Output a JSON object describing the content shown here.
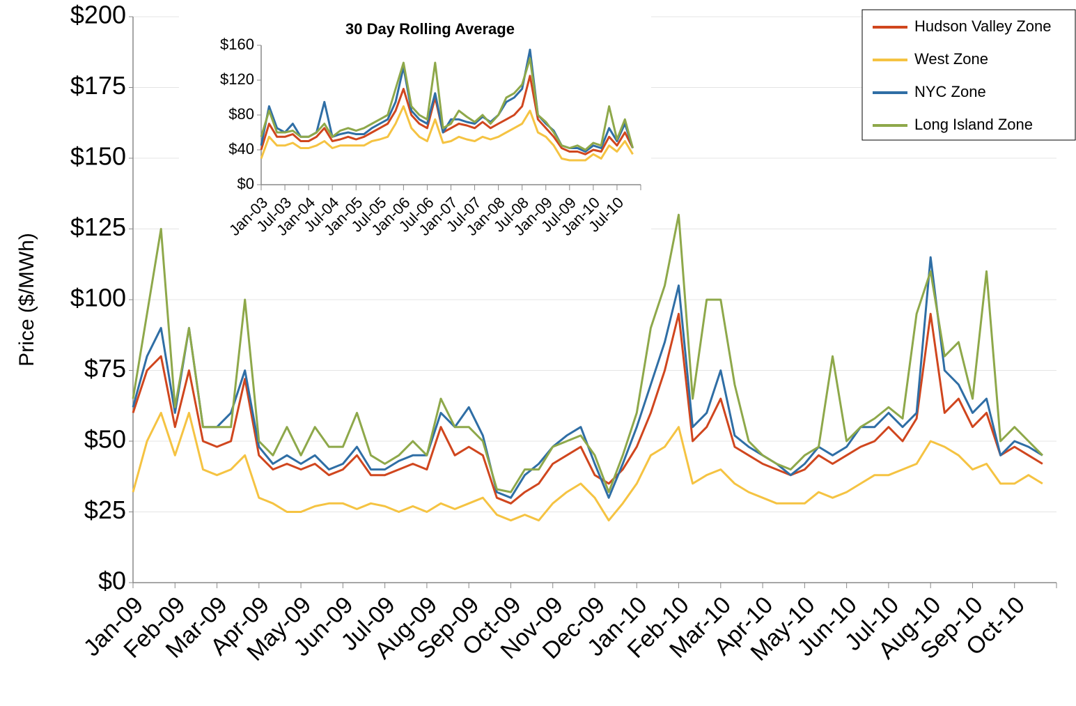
{
  "chart_data": [
    {
      "type": "line",
      "y_label": "Price ($/MWh)",
      "legend": "top-right",
      "grid": true,
      "categories": [
        "Jan-09",
        null,
        null,
        "Feb-09",
        null,
        null,
        "Mar-09",
        null,
        null,
        "Apr-09",
        null,
        null,
        "May-09",
        null,
        null,
        "Jun-09",
        null,
        null,
        "Jul-09",
        null,
        null,
        "Aug-09",
        null,
        null,
        "Sep-09",
        null,
        null,
        "Oct-09",
        null,
        null,
        "Nov-09",
        null,
        null,
        "Dec-09",
        null,
        null,
        "Jan-10",
        null,
        null,
        "Feb-10",
        null,
        null,
        "Mar-10",
        null,
        null,
        "Apr-10",
        null,
        null,
        "May-10",
        null,
        null,
        "Jun-10",
        null,
        null,
        "Jul-10",
        null,
        null,
        "Aug-10",
        null,
        null,
        "Sep-10",
        null,
        null,
        "Oct-10",
        null,
        null
      ],
      "ylim": [
        0,
        200
      ],
      "yticks": [
        {
          "value": 0,
          "label": "$0"
        },
        {
          "value": 25,
          "label": "$25"
        },
        {
          "value": 50,
          "label": "$50"
        },
        {
          "value": 75,
          "label": "$75"
        },
        {
          "value": 100,
          "label": "$100"
        },
        {
          "value": 125,
          "label": "$125"
        },
        {
          "value": 150,
          "label": "$150"
        },
        {
          "value": 175,
          "label": "$175"
        },
        {
          "value": 200,
          "label": "$200"
        }
      ],
      "series": [
        {
          "name": "Hudson Valley Zone",
          "color": "#d0461e",
          "values": [
            60,
            75,
            80,
            55,
            75,
            50,
            48,
            50,
            72,
            45,
            40,
            42,
            40,
            42,
            38,
            40,
            45,
            38,
            38,
            40,
            42,
            40,
            55,
            45,
            48,
            45,
            30,
            28,
            32,
            35,
            42,
            45,
            48,
            38,
            35,
            40,
            48,
            60,
            75,
            95,
            50,
            55,
            65,
            48,
            45,
            42,
            40,
            38,
            40,
            45,
            42,
            45,
            48,
            50,
            55,
            50,
            58,
            95,
            60,
            65,
            55,
            60,
            45,
            48,
            45,
            42
          ]
        },
        {
          "name": "West Zone",
          "color": "#f5c342",
          "values": [
            32,
            50,
            60,
            45,
            60,
            40,
            38,
            40,
            45,
            30,
            28,
            25,
            25,
            27,
            28,
            28,
            26,
            28,
            27,
            25,
            27,
            25,
            28,
            26,
            28,
            30,
            24,
            22,
            24,
            22,
            28,
            32,
            35,
            30,
            22,
            28,
            35,
            45,
            48,
            55,
            35,
            38,
            40,
            35,
            32,
            30,
            28,
            28,
            28,
            32,
            30,
            32,
            35,
            38,
            38,
            40,
            42,
            50,
            48,
            45,
            40,
            42,
            35,
            35,
            38,
            35
          ]
        },
        {
          "name": "NYC Zone",
          "color": "#2f6ea5",
          "values": [
            62,
            80,
            90,
            60,
            90,
            55,
            55,
            60,
            75,
            48,
            42,
            45,
            42,
            45,
            40,
            42,
            48,
            40,
            40,
            43,
            45,
            45,
            60,
            55,
            62,
            52,
            32,
            30,
            38,
            42,
            48,
            52,
            55,
            42,
            30,
            42,
            55,
            70,
            85,
            105,
            55,
            60,
            75,
            52,
            48,
            45,
            42,
            38,
            42,
            48,
            45,
            48,
            55,
            55,
            60,
            55,
            60,
            115,
            75,
            70,
            60,
            65,
            45,
            50,
            48,
            45
          ]
        },
        {
          "name": "Long Island Zone",
          "color": "#8ea84a",
          "values": [
            65,
            95,
            125,
            62,
            90,
            55,
            55,
            55,
            100,
            50,
            45,
            55,
            45,
            55,
            48,
            48,
            60,
            45,
            42,
            45,
            50,
            45,
            65,
            55,
            55,
            50,
            33,
            32,
            40,
            40,
            48,
            50,
            52,
            45,
            32,
            45,
            60,
            90,
            105,
            130,
            65,
            100,
            100,
            70,
            50,
            45,
            42,
            40,
            45,
            48,
            80,
            50,
            55,
            58,
            62,
            58,
            95,
            110,
            80,
            85,
            65,
            110,
            50,
            55,
            50,
            45
          ]
        }
      ]
    },
    {
      "type": "line",
      "title": "30 Day Rolling Average",
      "categories": [
        "Jan-03",
        null,
        null,
        "Jul-03",
        null,
        null,
        "Jan-04",
        null,
        null,
        "Jul-04",
        null,
        null,
        "Jan-05",
        null,
        null,
        "Jul-05",
        null,
        null,
        "Jan-06",
        null,
        null,
        "Jul-06",
        null,
        null,
        "Jan-07",
        null,
        null,
        "Jul-07",
        null,
        null,
        "Jan-08",
        null,
        null,
        "Jul-08",
        null,
        null,
        "Jan-09",
        null,
        null,
        "Jul-09",
        null,
        null,
        "Jan-10",
        null,
        null,
        "Jul-10",
        null,
        null
      ],
      "ylim": [
        0,
        160
      ],
      "yticks": [
        {
          "value": 0,
          "label": "$0"
        },
        {
          "value": 40,
          "label": "$40"
        },
        {
          "value": 80,
          "label": "$80"
        },
        {
          "value": 120,
          "label": "$120"
        },
        {
          "value": 160,
          "label": "$160"
        }
      ],
      "series": [
        {
          "color": "#d0461e",
          "values": [
            40,
            70,
            55,
            55,
            58,
            50,
            50,
            55,
            65,
            50,
            52,
            55,
            52,
            55,
            60,
            65,
            70,
            85,
            110,
            80,
            70,
            65,
            100,
            60,
            65,
            70,
            68,
            65,
            72,
            65,
            70,
            75,
            80,
            90,
            125,
            75,
            65,
            55,
            42,
            38,
            38,
            35,
            40,
            38,
            55,
            45,
            60,
            42
          ]
        },
        {
          "color": "#f5c342",
          "values": [
            30,
            55,
            45,
            45,
            48,
            42,
            42,
            45,
            50,
            42,
            45,
            45,
            45,
            45,
            50,
            52,
            55,
            70,
            90,
            65,
            55,
            50,
            75,
            48,
            50,
            55,
            52,
            50,
            55,
            52,
            55,
            60,
            65,
            70,
            85,
            60,
            55,
            45,
            30,
            28,
            28,
            28,
            35,
            30,
            45,
            38,
            50,
            35
          ]
        },
        {
          "color": "#2f6ea5",
          "values": [
            45,
            90,
            65,
            60,
            70,
            55,
            55,
            60,
            95,
            55,
            58,
            60,
            58,
            58,
            65,
            70,
            75,
            95,
            135,
            85,
            75,
            70,
            105,
            60,
            75,
            75,
            72,
            70,
            78,
            72,
            80,
            95,
            100,
            110,
            155,
            80,
            70,
            62,
            45,
            42,
            42,
            38,
            45,
            42,
            65,
            50,
            70,
            42
          ]
        },
        {
          "color": "#8ea84a",
          "values": [
            55,
            85,
            60,
            60,
            62,
            55,
            55,
            60,
            70,
            55,
            62,
            65,
            62,
            65,
            70,
            75,
            80,
            110,
            140,
            90,
            80,
            75,
            140,
            65,
            70,
            85,
            78,
            72,
            80,
            70,
            80,
            100,
            105,
            115,
            145,
            80,
            72,
            60,
            45,
            42,
            45,
            40,
            48,
            45,
            90,
            52,
            75,
            42
          ]
        }
      ]
    }
  ]
}
